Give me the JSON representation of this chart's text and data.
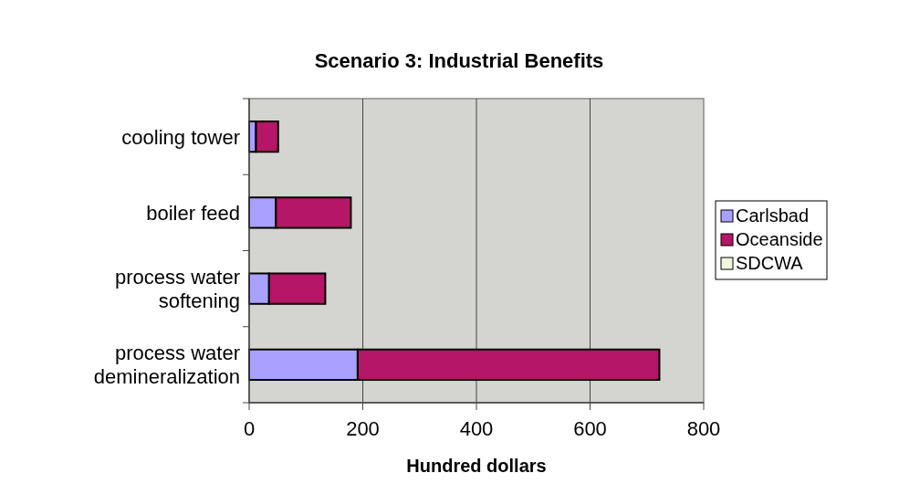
{
  "chart_data": {
    "type": "bar",
    "orientation": "horizontal",
    "stacked": true,
    "title": "Scenario 3:  Industrial Benefits",
    "xlabel": "Hundred dollars",
    "categories": [
      "cooling tower",
      "boiler feed",
      "process water softening",
      "process water demineralization"
    ],
    "series": [
      {
        "name": "Carlsbad",
        "color": "#aaa0ff",
        "values": [
          12,
          47,
          35,
          191
        ]
      },
      {
        "name": "Oceanside",
        "color": "#b51665",
        "values": [
          39,
          132,
          99,
          531
        ]
      },
      {
        "name": "SDCWA",
        "color": "#f0f8e0",
        "values": [
          0,
          0,
          0,
          0
        ]
      }
    ],
    "xlim": [
      0,
      800
    ],
    "xticks": [
      0,
      200,
      400,
      600,
      800
    ],
    "grid": "x",
    "legend": "right"
  }
}
